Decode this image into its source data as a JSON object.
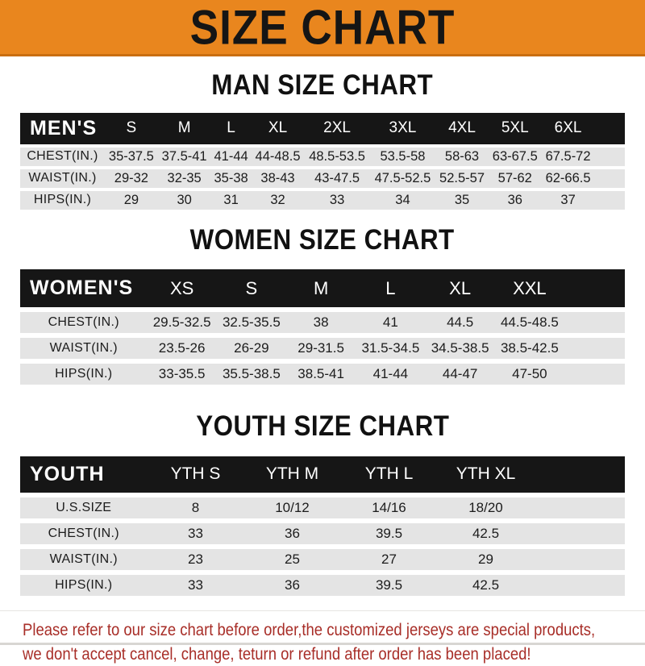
{
  "colors": {
    "banner_bg": "#E9861E",
    "banner_border": "#C96E10",
    "banner_text": "#151515",
    "table_header_bg": "#161616",
    "table_header_text": "#FFFFFF",
    "row_bg": "#E4E4E4",
    "row_text": "#1C1C1C",
    "footer_text": "#A82E28"
  },
  "banner": {
    "title": "SIZE CHART"
  },
  "man_section": {
    "heading": "MAN SIZE CHART",
    "table": {
      "label": "MEN'S",
      "columns": [
        "S",
        "M",
        "L",
        "XL",
        "2XL",
        "3XL",
        "4XL",
        "5XL",
        "6XL"
      ],
      "rows": [
        {
          "label": "CHEST(IN.)",
          "values": [
            "35-37.5",
            "37.5-41",
            "41-44",
            "44-48.5",
            "48.5-53.5",
            "53.5-58",
            "58-63",
            "63-67.5",
            "67.5-72"
          ]
        },
        {
          "label": "WAIST(IN.)",
          "values": [
            "29-32",
            "32-35",
            "35-38",
            "38-43",
            "43-47.5",
            "47.5-52.5",
            "52.5-57",
            "57-62",
            "62-66.5"
          ]
        },
        {
          "label": "HIPS(IN.)",
          "values": [
            "29",
            "30",
            "31",
            "32",
            "33",
            "34",
            "35",
            "36",
            "37"
          ]
        }
      ]
    }
  },
  "women_section": {
    "heading": "WOMEN SIZE CHART",
    "table": {
      "label": "WOMEN'S",
      "columns": [
        "XS",
        "S",
        "M",
        "L",
        "XL",
        "XXL"
      ],
      "rows": [
        {
          "label": "CHEST(IN.)",
          "values": [
            "29.5-32.5",
            "32.5-35.5",
            "38",
            "41",
            "44.5",
            "44.5-48.5"
          ]
        },
        {
          "label": "WAIST(IN.)",
          "values": [
            "23.5-26",
            "26-29",
            "29-31.5",
            "31.5-34.5",
            "34.5-38.5",
            "38.5-42.5"
          ]
        },
        {
          "label": "HIPS(IN.)",
          "values": [
            "33-35.5",
            "35.5-38.5",
            "38.5-41",
            "41-44",
            "44-47",
            "47-50"
          ]
        }
      ]
    }
  },
  "youth_section": {
    "heading": "YOUTH SIZE CHART",
    "table": {
      "label": "YOUTH",
      "columns": [
        "YTH S",
        "YTH M",
        "YTH L",
        "YTH XL"
      ],
      "rows": [
        {
          "label": "U.S.SIZE",
          "values": [
            "8",
            "10/12",
            "14/16",
            "18/20"
          ]
        },
        {
          "label": "CHEST(IN.)",
          "values": [
            "33",
            "36",
            "39.5",
            "42.5"
          ]
        },
        {
          "label": "WAIST(IN.)",
          "values": [
            "23",
            "25",
            "27",
            "29"
          ]
        },
        {
          "label": "HIPS(IN.)",
          "values": [
            "33",
            "36",
            "39.5",
            "42.5"
          ]
        }
      ]
    }
  },
  "footer": {
    "line1": "Please refer to our size chart before order,the customized jerseys are special products,",
    "line2": "we don't accept cancel, change, teturn or refund after order has been placed!"
  }
}
